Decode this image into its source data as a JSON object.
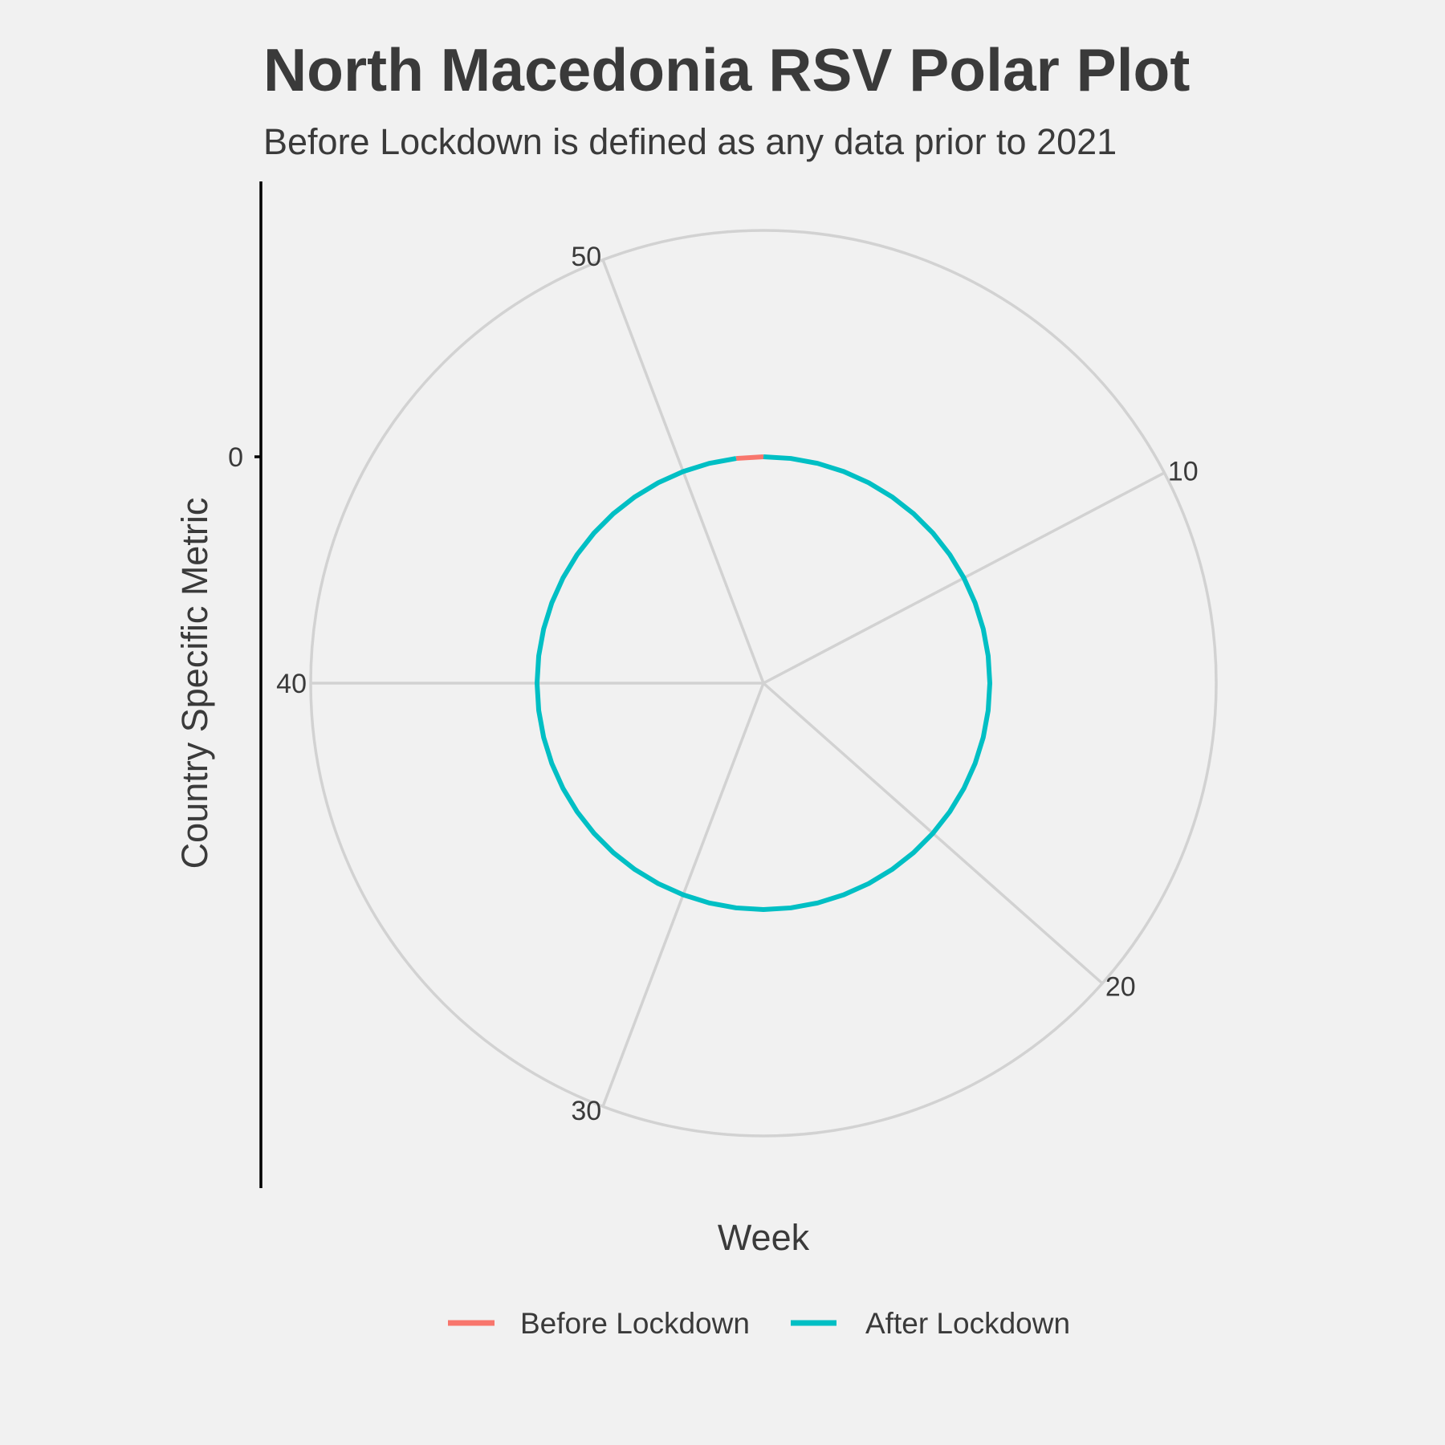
{
  "chart_data": {
    "type": "line",
    "coord": "polar",
    "title": "North Macedonia RSV Polar Plot",
    "subtitle": "Before Lockdown is defined as any data prior to 2021",
    "xlabel": "Week",
    "ylabel": "Country Specific Metric",
    "x_range": [
      1,
      53
    ],
    "x_ticks": [
      10,
      20,
      30,
      40,
      50
    ],
    "y_ticks": [
      0
    ],
    "ylim": [
      -1,
      1
    ],
    "grid": true,
    "legend_position": "bottom",
    "series": [
      {
        "name": "Before Lockdown",
        "color": "#f8766d",
        "x": [
          52,
          53
        ],
        "y": [
          0,
          0
        ]
      },
      {
        "name": "After Lockdown",
        "color": "#00bfc4",
        "x": [
          1,
          2,
          3,
          4,
          5,
          6,
          7,
          8,
          9,
          10,
          11,
          12,
          13,
          14,
          15,
          16,
          17,
          18,
          19,
          20,
          21,
          22,
          23,
          24,
          25,
          26,
          27,
          28,
          29,
          30,
          31,
          32,
          33,
          34,
          35,
          36,
          37,
          38,
          39,
          40,
          41,
          42,
          43,
          44,
          45,
          46,
          47,
          48,
          49,
          50,
          51,
          52
        ],
        "y": [
          0,
          0,
          0,
          0,
          0,
          0,
          0,
          0,
          0,
          0,
          0,
          0,
          0,
          0,
          0,
          0,
          0,
          0,
          0,
          0,
          0,
          0,
          0,
          0,
          0,
          0,
          0,
          0,
          0,
          0,
          0,
          0,
          0,
          0,
          0,
          0,
          0,
          0,
          0,
          0,
          0,
          0,
          0,
          0,
          0,
          0,
          0,
          0,
          0,
          0,
          0,
          0
        ]
      }
    ]
  }
}
